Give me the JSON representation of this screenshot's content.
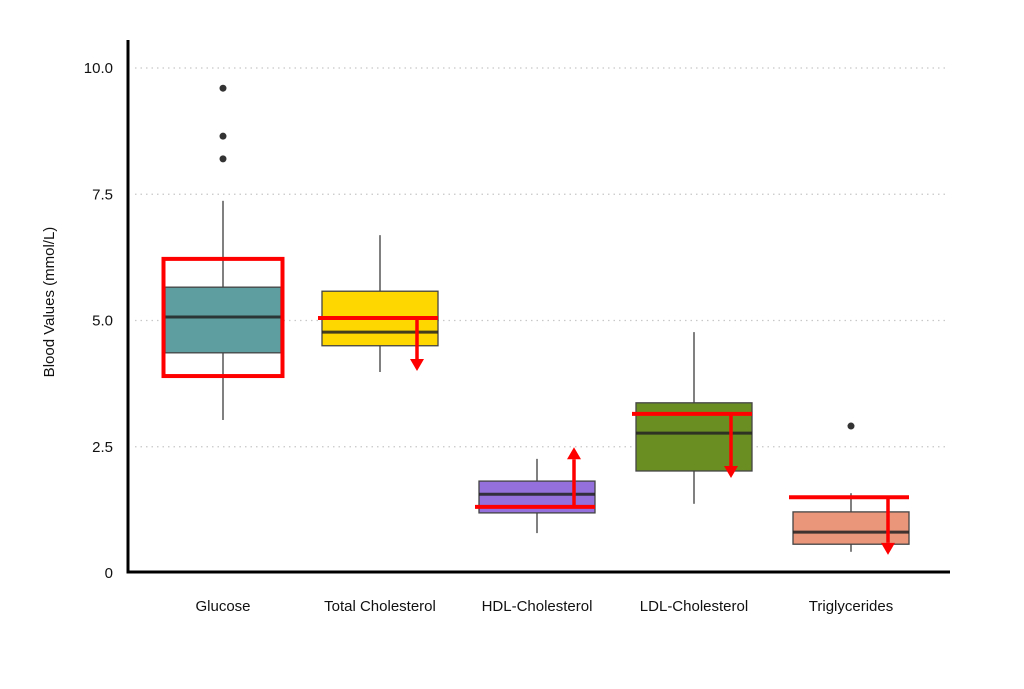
{
  "chart_data": {
    "type": "box",
    "title": "",
    "xlabel": "",
    "ylabel": "Blood Values (mmol/L)",
    "ylim": [
      0,
      10.9
    ],
    "yticks": [
      0,
      2.5,
      5.0,
      7.5,
      10.0
    ],
    "ytick_labels": [
      "0",
      "2.5",
      "5.0",
      "7.5",
      "10.0"
    ],
    "grid": "horizontal-dotted",
    "categories": [
      "Glucose",
      "Total Cholesterol",
      "HDL-Cholesterol",
      "LDL-Cholesterol",
      "Triglycerides"
    ],
    "series": [
      {
        "name": "Glucose",
        "color": "#5f9ea0",
        "whisker_low": 3.03,
        "q1": 4.36,
        "median": 5.07,
        "q3": 5.66,
        "whisker_high": 7.37,
        "outliers": [
          8.2,
          8.65,
          9.6
        ]
      },
      {
        "name": "Total Cholesterol",
        "color": "#ffd700",
        "whisker_low": 3.98,
        "q1": 4.5,
        "median": 4.77,
        "q3": 5.58,
        "whisker_high": 6.69,
        "outliers": []
      },
      {
        "name": "HDL-Cholesterol",
        "color": "#9370db",
        "whisker_low": 0.79,
        "q1": 1.19,
        "median": 1.56,
        "q3": 1.82,
        "whisker_high": 2.26,
        "outliers": []
      },
      {
        "name": "LDL-Cholesterol",
        "color": "#6b8e23",
        "whisker_low": 1.37,
        "q1": 2.02,
        "median": 2.77,
        "q3": 3.37,
        "whisker_high": 4.77,
        "outliers": []
      },
      {
        "name": "Triglycerides",
        "color": "#e9967a",
        "whisker_low": 0.42,
        "q1": 0.57,
        "median": 0.81,
        "q3": 1.21,
        "whisker_high": 1.58,
        "outliers": [
          2.91
        ]
      }
    ],
    "annotations": [
      {
        "category": "Glucose",
        "type": "range-box",
        "low": 3.9,
        "high": 6.22,
        "color": "#ff0000"
      },
      {
        "category": "Total Cholesterol",
        "type": "threshold-arrow",
        "level": 5.05,
        "direction": "down",
        "arrow_to": 4.0,
        "color": "#ff0000"
      },
      {
        "category": "HDL-Cholesterol",
        "type": "threshold-arrow",
        "level": 1.31,
        "direction": "up",
        "arrow_to": 2.49,
        "color": "#ff0000"
      },
      {
        "category": "LDL-Cholesterol",
        "type": "threshold-arrow",
        "level": 3.15,
        "direction": "down",
        "arrow_to": 1.88,
        "color": "#ff0000"
      },
      {
        "category": "Triglycerides",
        "type": "threshold-arrow",
        "level": 1.5,
        "direction": "down",
        "arrow_to": 0.36,
        "color": "#ff0000"
      }
    ]
  }
}
